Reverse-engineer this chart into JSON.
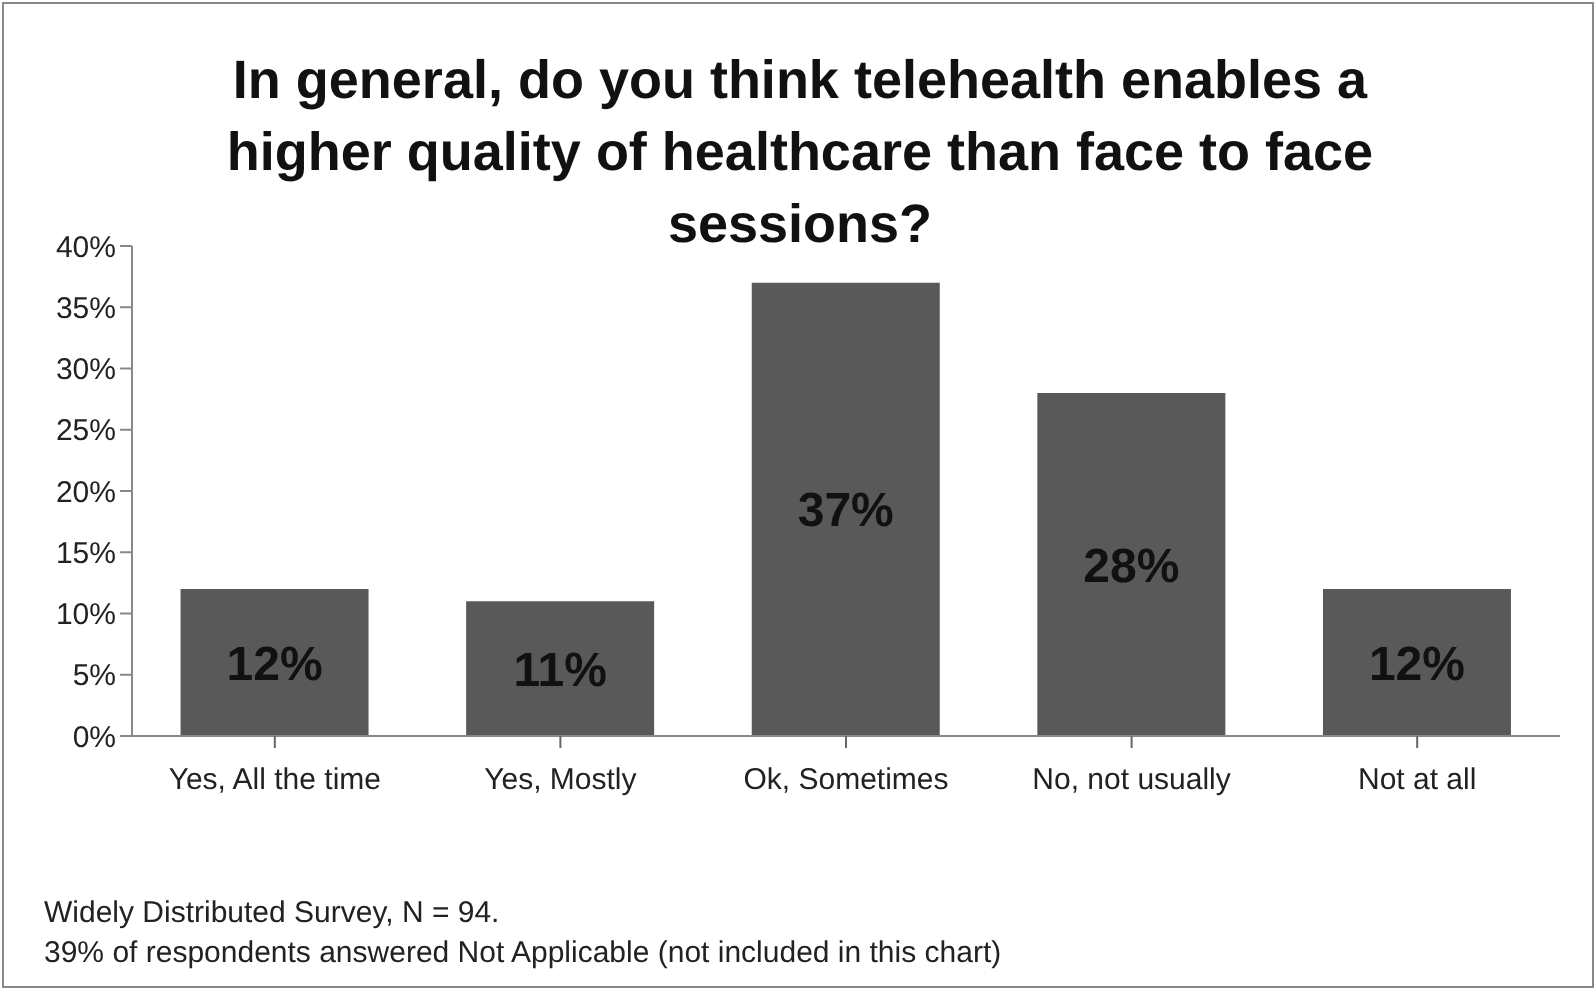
{
  "chart_data": {
    "type": "bar",
    "title": "In general, do you think telehealth enables a higher quality of healthcare than face to face sessions?",
    "categories": [
      "Yes, All the time",
      "Yes, Mostly",
      "Ok, Sometimes",
      "No, not usually",
      "Not at all"
    ],
    "values": [
      12,
      11,
      37,
      28,
      12
    ],
    "value_labels": [
      "12%",
      "11%",
      "37%",
      "28%",
      "12%"
    ],
    "color": "#595959",
    "ylim": [
      0,
      40
    ],
    "yticks": [
      {
        "value": 0,
        "label": "0%"
      },
      {
        "value": 5,
        "label": "5%"
      },
      {
        "value": 10,
        "label": "10%"
      },
      {
        "value": 15,
        "label": "15%"
      },
      {
        "value": 20,
        "label": "20%"
      },
      {
        "value": 25,
        "label": "25%"
      },
      {
        "value": 30,
        "label": "30%"
      },
      {
        "value": 35,
        "label": "35%"
      },
      {
        "value": 40,
        "label": "40%"
      }
    ],
    "grid": false,
    "legend": false,
    "annotations": [
      "Widely Distributed Survey, N = 94.",
      "39% of respondents answered Not Applicable (not included in this chart)"
    ]
  }
}
